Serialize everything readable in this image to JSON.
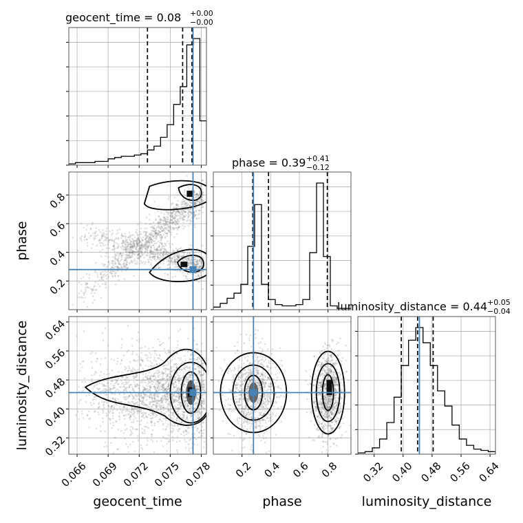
{
  "chart_data": {
    "type": "corner",
    "parameters": [
      {
        "name": "geocent_time",
        "axis_label": "geocent_time",
        "title_prefix": "geocent_time = 0.08",
        "title_plus": "+0.00",
        "title_minus": "−0.00",
        "range": [
          0.0652,
          0.0785
        ],
        "ticks": [
          0.066,
          0.069,
          0.072,
          0.075,
          0.078
        ],
        "tick_labels": [
          "0.066",
          "0.069",
          "0.072",
          "0.075",
          "0.078"
        ],
        "quantiles": [
          0.0728,
          0.0762,
          0.0771
        ],
        "truth": 0.0772,
        "hist": [
          1,
          2,
          2,
          2,
          3,
          3,
          5,
          6,
          7,
          7,
          8,
          9,
          12,
          15,
          22,
          32,
          48,
          62,
          95,
          100,
          35
        ]
      },
      {
        "name": "phase",
        "axis_label": "phase",
        "title_prefix": "phase = 0.39",
        "title_plus": "+0.41",
        "title_minus": "−0.12",
        "range": [
          0.0,
          0.96
        ],
        "ticks": [
          0.2,
          0.4,
          0.6,
          0.8
        ],
        "tick_labels": [
          "0.2",
          "0.4",
          "0.6",
          "0.8"
        ],
        "quantiles": [
          0.275,
          0.385,
          0.795
        ],
        "truth": 0.28,
        "hist": [
          2,
          5,
          9,
          13,
          20,
          50,
          83,
          20,
          8,
          4,
          3,
          3,
          4,
          8,
          45,
          100,
          42,
          3,
          1,
          1
        ]
      },
      {
        "name": "luminosity_distance",
        "axis_label": "luminosity_distance",
        "title_prefix": "luminosity_distance = 0.44",
        "title_plus": "+0.05",
        "title_minus": "−0.04",
        "range": [
          0.275,
          0.655
        ],
        "ticks": [
          0.32,
          0.4,
          0.48,
          0.56,
          0.64
        ],
        "tick_labels": [
          "0.32",
          "0.40",
          "0.48",
          "0.56",
          "0.64"
        ],
        "quantiles": [
          0.395,
          0.44,
          0.483
        ],
        "truth": 0.445,
        "hist": [
          1,
          2,
          5,
          12,
          25,
          45,
          70,
          90,
          100,
          88,
          70,
          50,
          38,
          23,
          12,
          7,
          4,
          3,
          2
        ]
      }
    ],
    "x_tick_rotation_deg": 45,
    "y_tick_rotation_deg": 45,
    "grid": true,
    "contour_color": "#000000",
    "truth_color": "#4682b4",
    "quantile_line_style": "dashed"
  }
}
